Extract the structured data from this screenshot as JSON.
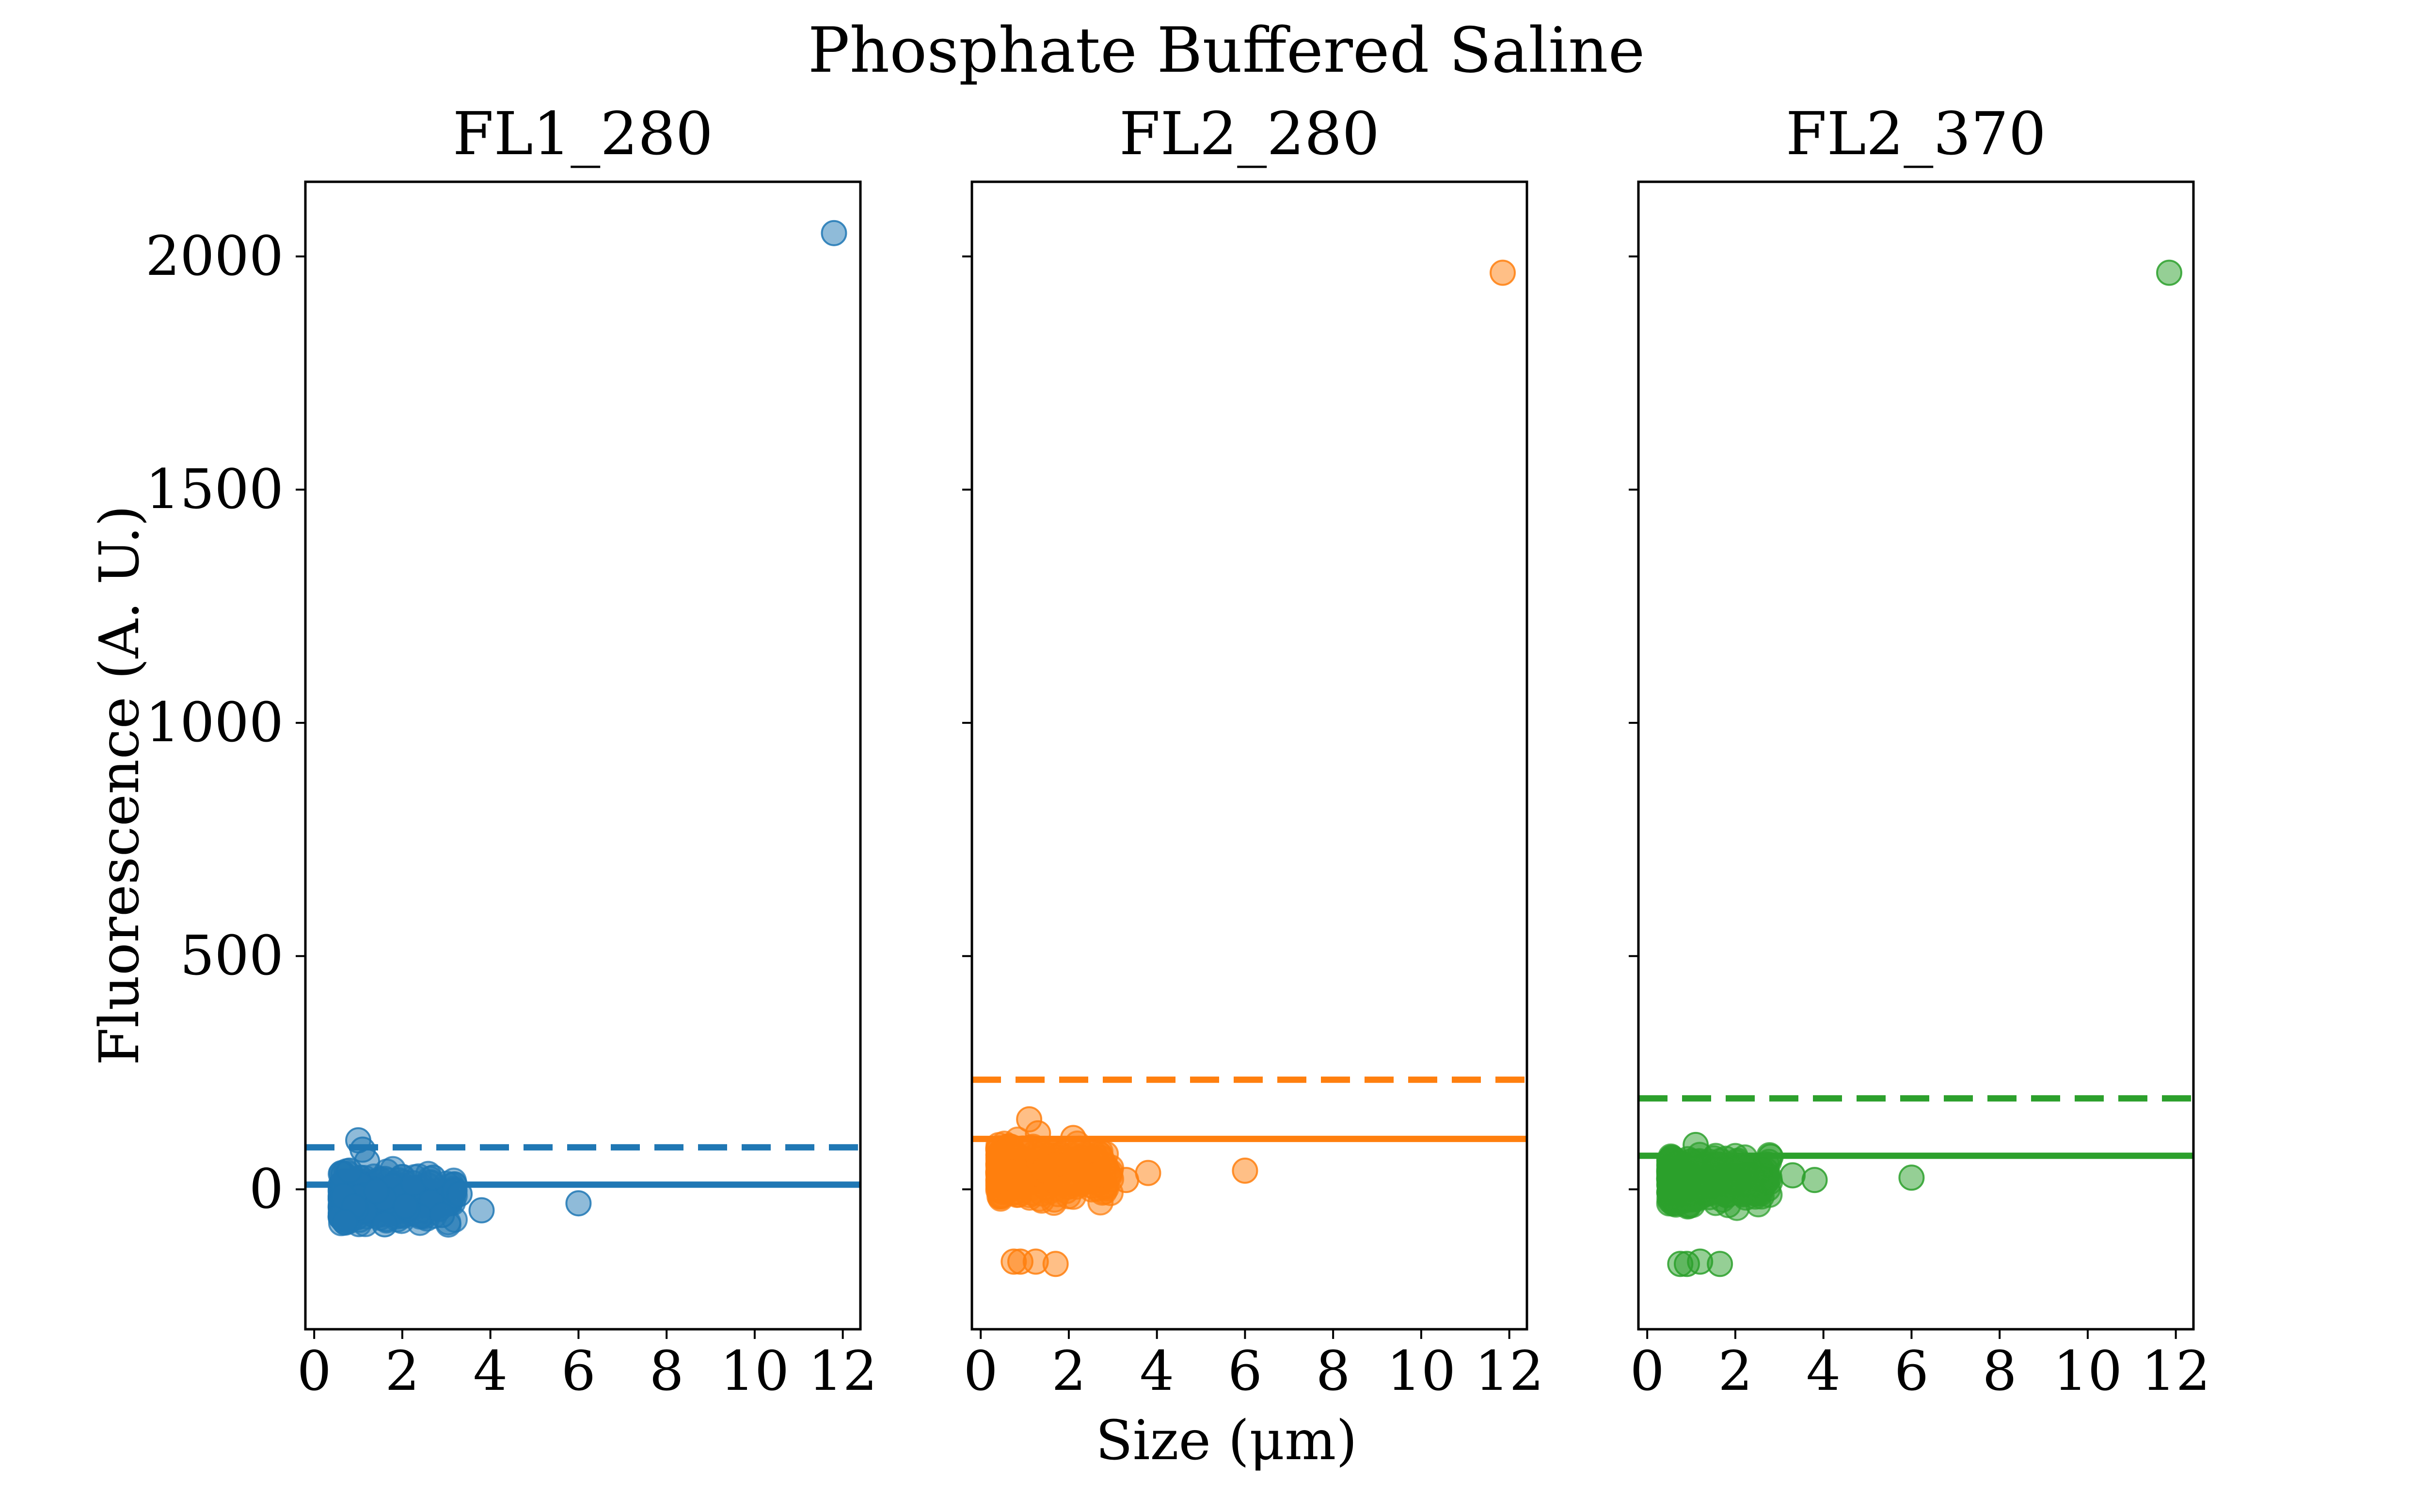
{
  "figure": {
    "suptitle": "Phosphate Buffered Saline",
    "xlabel": "Size (μm)",
    "ylabel": "Fluorescence (A. U.)"
  },
  "chart_data": [
    {
      "type": "scatter",
      "title": "FL1_280",
      "xlabel": "",
      "ylabel": "Fluorescence (A. U.)",
      "xlim": [
        -0.2,
        12.4
      ],
      "ylim": [
        -300,
        2160
      ],
      "xticks": [
        0,
        2,
        4,
        6,
        8,
        10,
        12
      ],
      "yticks": [
        0,
        500,
        1000,
        1500,
        2000
      ],
      "grid": false,
      "color": "#1f77b4",
      "hlines": [
        {
          "style": "solid",
          "value": 10
        },
        {
          "style": "dashed",
          "value": 90
        }
      ],
      "cluster": {
        "x_range": [
          0.6,
          3.2
        ],
        "y_center": -20,
        "y_spread": 35,
        "n": 420
      },
      "points": [
        {
          "x": 11.8,
          "y": 2050
        },
        {
          "x": 6.0,
          "y": -30
        },
        {
          "x": 3.8,
          "y": -45
        },
        {
          "x": 3.3,
          "y": -10
        },
        {
          "x": 1.0,
          "y": 105
        },
        {
          "x": 1.1,
          "y": 85
        },
        {
          "x": 1.2,
          "y": 60
        },
        {
          "x": 0.8,
          "y": 40
        },
        {
          "x": 2.7,
          "y": 25
        },
        {
          "x": 2.9,
          "y": -55
        },
        {
          "x": 0.7,
          "y": -70
        },
        {
          "x": 1.6,
          "y": -75
        }
      ]
    },
    {
      "type": "scatter",
      "title": "FL2_280",
      "xlabel": "",
      "ylabel": "",
      "xlim": [
        -0.2,
        12.4
      ],
      "ylim": [
        -300,
        2160
      ],
      "xticks": [
        0,
        2,
        4,
        6,
        8,
        10,
        12
      ],
      "yticks": [
        0,
        500,
        1000,
        1500,
        2000
      ],
      "grid": false,
      "color": "#ff7f0e",
      "hlines": [
        {
          "style": "solid",
          "value": 108
        },
        {
          "style": "dashed",
          "value": 235
        }
      ],
      "cluster": {
        "x_range": [
          0.4,
          3.0
        ],
        "y_center": 40,
        "y_spread": 38,
        "n": 420
      },
      "points": [
        {
          "x": 11.85,
          "y": 1965
        },
        {
          "x": 6.0,
          "y": 40
        },
        {
          "x": 3.8,
          "y": 35
        },
        {
          "x": 3.3,
          "y": 20
        },
        {
          "x": 1.1,
          "y": 150
        },
        {
          "x": 1.3,
          "y": 120
        },
        {
          "x": 2.1,
          "y": 110
        },
        {
          "x": 0.75,
          "y": -155
        },
        {
          "x": 0.9,
          "y": -155
        },
        {
          "x": 1.25,
          "y": -155
        },
        {
          "x": 1.7,
          "y": -160
        },
        {
          "x": 2.9,
          "y": 30
        }
      ]
    },
    {
      "type": "scatter",
      "title": "FL2_370",
      "xlabel": "",
      "ylabel": "",
      "xlim": [
        -0.2,
        12.4
      ],
      "ylim": [
        -300,
        2160
      ],
      "xticks": [
        0,
        2,
        4,
        6,
        8,
        10,
        12
      ],
      "yticks": [
        0,
        500,
        1000,
        1500,
        2000
      ],
      "grid": false,
      "color": "#2ca02c",
      "hlines": [
        {
          "style": "solid",
          "value": 72
        },
        {
          "style": "dashed",
          "value": 195
        }
      ],
      "cluster": {
        "x_range": [
          0.5,
          2.8
        ],
        "y_center": 20,
        "y_spread": 35,
        "n": 420
      },
      "points": [
        {
          "x": 11.85,
          "y": 1965
        },
        {
          "x": 6.0,
          "y": 25
        },
        {
          "x": 3.8,
          "y": 20
        },
        {
          "x": 3.3,
          "y": 30
        },
        {
          "x": 2.8,
          "y": 70
        },
        {
          "x": 1.1,
          "y": 95
        },
        {
          "x": 0.75,
          "y": -160
        },
        {
          "x": 0.9,
          "y": -160
        },
        {
          "x": 1.2,
          "y": -155
        },
        {
          "x": 1.65,
          "y": -160
        },
        {
          "x": 1.0,
          "y": 60
        }
      ]
    }
  ]
}
